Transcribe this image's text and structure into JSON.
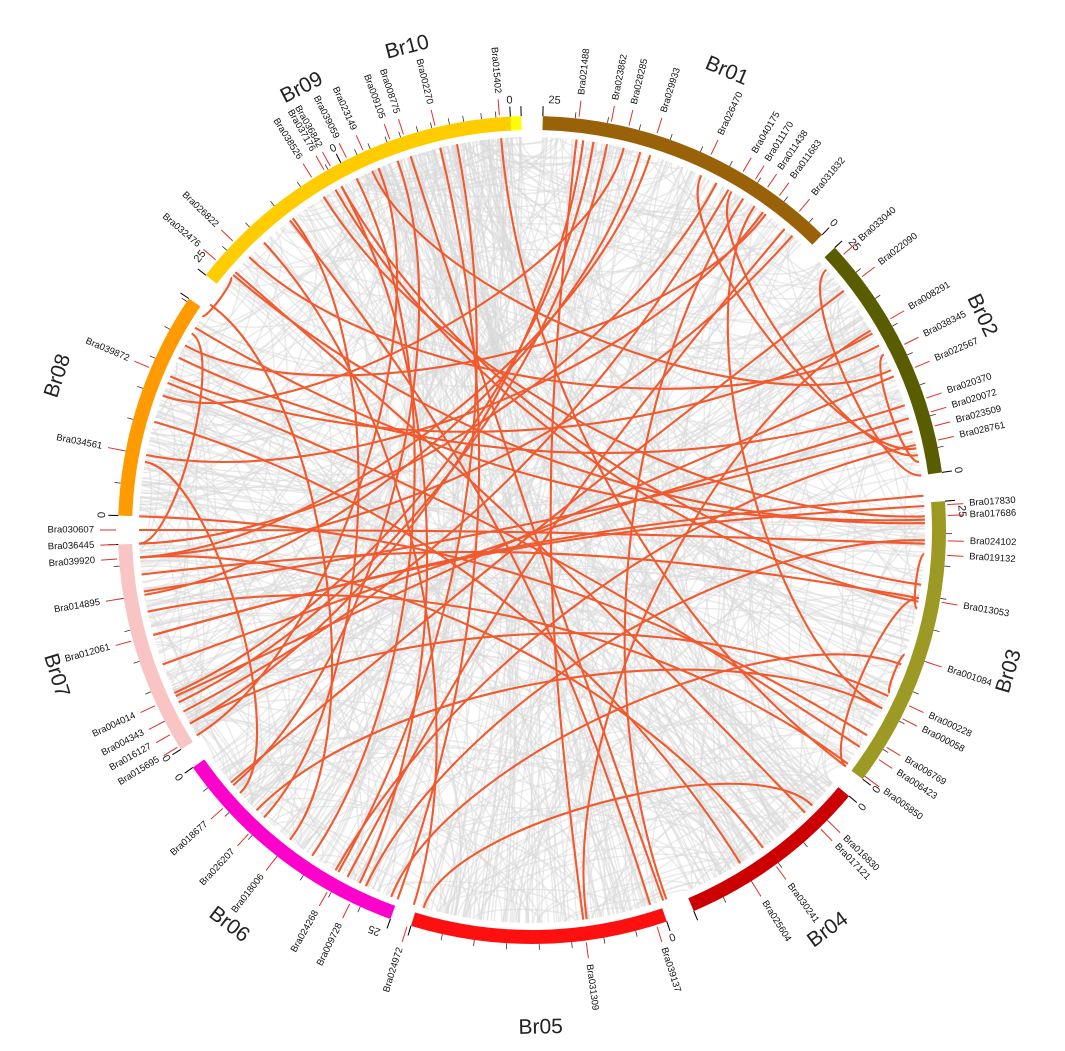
{
  "chromosomes": [
    {
      "id": "Br10",
      "color": "#ffff00",
      "start": -27.5,
      "end": -1.5,
      "tick_labels": [
        "0"
      ]
    },
    {
      "id": "Br01",
      "color": "#9a6208",
      "start": 1.5,
      "end": 44.5,
      "tick_labels": [
        "25",
        "0"
      ]
    },
    {
      "id": "Br02",
      "color": "#5a5c00",
      "start": 47.0,
      "end": 82.0,
      "tick_labels": [
        "25",
        "0"
      ]
    },
    {
      "id": "Br03",
      "color": "#9c9a24",
      "start": 86.0,
      "end": 127.0,
      "tick_labels": [
        "25",
        "0"
      ]
    },
    {
      "id": "Br04",
      "color": "#cc0000",
      "start": 130.0,
      "end": 157.0,
      "tick_labels": [
        "0"
      ]
    },
    {
      "id": "Br05",
      "color": "#ff1010",
      "start": 161.0,
      "end": 197.0,
      "tick_labels": [
        "0"
      ]
    },
    {
      "id": "Br06",
      "color": "#ff00cc",
      "start": 200.0,
      "end": 235.0,
      "tick_labels": [
        "25",
        "0"
      ]
    },
    {
      "id": "Br07",
      "color": "#f9c4c4",
      "start": 238.0,
      "end": 268.0,
      "tick_labels": [
        "0"
      ]
    },
    {
      "id": "Br08",
      "color": "#ff9a00",
      "start": 272.0,
      "end": 304.0,
      "tick_labels": [
        "0"
      ]
    },
    {
      "id": "Br09",
      "color": "#ffcc00",
      "start": 308.0,
      "end": 357.0,
      "tick_labels": [
        "25",
        "0"
      ]
    }
  ],
  "genes": [
    {
      "name": "Bra015402",
      "angle": -4.5
    },
    {
      "name": "Bra002270",
      "angle": -13.5
    },
    {
      "name": "Bra008775",
      "angle": -18.0
    },
    {
      "name": "Bra009105",
      "angle": -20.0
    },
    {
      "name": "Bra039059",
      "angle": -26.5
    },
    {
      "name": "Bra037176",
      "angle": -30.0
    },
    {
      "name": "Bra038526",
      "angle": -32.0
    },
    {
      "name": "Bra021488",
      "angle": 6.5
    },
    {
      "name": "Bra023862",
      "angle": 11.0
    },
    {
      "name": "Bra028285",
      "angle": 13.5
    },
    {
      "name": "Bra029933",
      "angle": 17.5
    },
    {
      "name": "Bra026470",
      "angle": 25.5
    },
    {
      "name": "Bra040175",
      "angle": 30.5
    },
    {
      "name": "Bra011170",
      "angle": 32.5
    },
    {
      "name": "Bra011438",
      "angle": 34.5
    },
    {
      "name": "Bra011683",
      "angle": 36.5
    },
    {
      "name": "Bra031832",
      "angle": 40.0
    },
    {
      "name": "Bra033040",
      "angle": 48.5
    },
    {
      "name": "Bra022090",
      "angle": 52.5
    },
    {
      "name": "Bra008291",
      "angle": 59.5
    },
    {
      "name": "Bra038345",
      "angle": 63.5
    },
    {
      "name": "Bra022567",
      "angle": 67.0
    },
    {
      "name": "Bra020370",
      "angle": 71.5
    },
    {
      "name": "Bra020072",
      "angle": 73.5
    },
    {
      "name": "Bra023509",
      "angle": 75.5
    },
    {
      "name": "Bra028761",
      "angle": 77.5
    },
    {
      "name": "Bra017830",
      "angle": 86.5
    },
    {
      "name": "Bra017686",
      "angle": 88.0
    },
    {
      "name": "Bra024102",
      "angle": 91.5
    },
    {
      "name": "Bra019132",
      "angle": 93.5
    },
    {
      "name": "Bra013053",
      "angle": 100.0
    },
    {
      "name": "Bra001084",
      "angle": 108.5
    },
    {
      "name": "Bra000228",
      "angle": 115.0
    },
    {
      "name": "Bra000058",
      "angle": 117.0
    },
    {
      "name": "Bra006769",
      "angle": 121.5
    },
    {
      "name": "Bra006423",
      "angle": 123.5
    },
    {
      "name": "Bra005850",
      "angle": 126.5
    },
    {
      "name": "Bra016830",
      "angle": 134.5
    },
    {
      "name": "Bra017121",
      "angle": 136.0
    },
    {
      "name": "Bra030241",
      "angle": 144.0
    },
    {
      "name": "Bra025604",
      "angle": 148.0
    },
    {
      "name": "Bra039137",
      "angle": 162.5
    },
    {
      "name": "Bra031309",
      "angle": 172.5
    },
    {
      "name": "Bra024972",
      "angle": 197.5
    },
    {
      "name": "Bra009728",
      "angle": 206.0
    },
    {
      "name": "Bra024268",
      "angle": 209.5
    },
    {
      "name": "Bra018006",
      "angle": 218.0
    },
    {
      "name": "Bra026207",
      "angle": 223.0
    },
    {
      "name": "Bra018677",
      "angle": 228.0
    },
    {
      "name": "Bra015695",
      "angle": 238.5
    },
    {
      "name": "Bra016127",
      "angle": 240.5
    },
    {
      "name": "Bra004343",
      "angle": 242.5
    },
    {
      "name": "Bra004014",
      "angle": 245.0
    },
    {
      "name": "Bra012061",
      "angle": 254.5
    },
    {
      "name": "Bra014895",
      "angle": 260.5
    },
    {
      "name": "Bra039920",
      "angle": 266.0
    },
    {
      "name": "Bra036445",
      "angle": 268.0
    },
    {
      "name": "Bra030607",
      "angle": 270.0
    },
    {
      "name": "Bra034561",
      "angle": 281.0
    },
    {
      "name": "Bra039872",
      "angle": 293.0
    },
    {
      "name": "Bra032476",
      "angle": 310.5
    },
    {
      "name": "Bra026822",
      "angle": 314.0
    },
    {
      "name": "Bra036842",
      "angle": 331.0
    },
    {
      "name": "Bra023149",
      "angle": 336.0
    }
  ],
  "links": [
    [
      -4.5,
      127.0
    ],
    [
      -13.5,
      200.0
    ],
    [
      -18.0,
      160.5
    ],
    [
      -20.0,
      229.5
    ],
    [
      -26.5,
      214.0
    ],
    [
      -30.0,
      100.5
    ],
    [
      -32.0,
      88.0
    ],
    [
      6.5,
      172.5
    ],
    [
      11.0,
      244.0
    ],
    [
      13.5,
      290.0
    ],
    [
      17.5,
      266.0
    ],
    [
      25.5,
      78.0
    ],
    [
      30.5,
      79.0
    ],
    [
      32.5,
      160.0
    ],
    [
      34.5,
      117.0
    ],
    [
      36.5,
      298.0
    ],
    [
      40.0,
      208.0
    ],
    [
      48.5,
      82.0
    ],
    [
      52.5,
      230.0
    ],
    [
      59.5,
      172.0
    ],
    [
      63.5,
      80.0
    ],
    [
      67.0,
      245.0
    ],
    [
      71.5,
      296.0
    ],
    [
      73.5,
      250.0
    ],
    [
      75.5,
      261.0
    ],
    [
      77.5,
      210.0
    ],
    [
      86.5,
      254.5
    ],
    [
      88.5,
      301.0
    ],
    [
      91.5,
      205.0
    ],
    [
      93.5,
      101.5
    ],
    [
      100.0,
      263.5
    ],
    [
      108.5,
      114.5
    ],
    [
      110.0,
      201.0
    ],
    [
      115.0,
      240.5
    ],
    [
      117.0,
      224.5
    ],
    [
      121.5,
      272.0
    ],
    [
      123.5,
      292.0
    ],
    [
      126.5,
      258.0
    ],
    [
      134.5,
      196.0
    ],
    [
      136.0,
      311.0
    ],
    [
      144.0,
      266.0
    ],
    [
      148.0,
      286.0
    ],
    [
      162.5,
      322.0
    ],
    [
      197.5,
      317.0
    ],
    [
      206.0,
      331.0
    ],
    [
      209.5,
      349.0
    ],
    [
      218.0,
      305.0
    ],
    [
      223.0,
      322.5
    ],
    [
      228.0,
      280.0
    ],
    [
      238.5,
      337.0
    ],
    [
      240.5,
      7.5
    ],
    [
      242.5,
      30.0
    ],
    [
      245.5,
      9.0
    ],
    [
      254.5,
      85.0
    ],
    [
      260.5,
      16.0
    ],
    [
      266.0,
      41.5
    ],
    [
      268.0,
      28.0
    ],
    [
      270.0,
      92.0
    ],
    [
      281.0,
      36.0
    ],
    [
      293.0,
      60.0
    ],
    [
      310.5,
      89.0
    ],
    [
      314.0,
      62.0
    ],
    [
      331.0,
      98.0
    ],
    [
      336.0,
      66.0
    ],
    [
      300.0,
      268.0
    ],
    [
      303.0,
      310.0
    ],
    [
      100.0,
      127.0
    ]
  ]
}
